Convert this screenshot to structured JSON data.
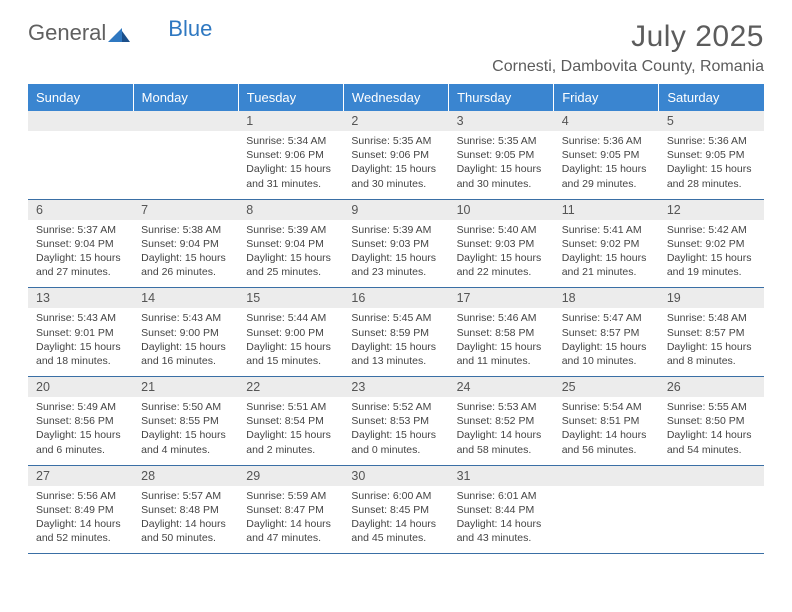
{
  "logo": {
    "general": "General",
    "blue": "Blue"
  },
  "title": "July 2025",
  "subtitle": "Cornesti, Dambovita County, Romania",
  "colors": {
    "header_bg": "#3a85d0",
    "header_fg": "#ffffff",
    "row_border": "#3a6fa5",
    "daynum_bg": "#ececec",
    "text": "#444444",
    "title_color": "#5c5c5c",
    "logo_gray": "#606060",
    "logo_blue": "#2f78c1"
  },
  "weekdays": [
    "Sunday",
    "Monday",
    "Tuesday",
    "Wednesday",
    "Thursday",
    "Friday",
    "Saturday"
  ],
  "weeks": [
    [
      null,
      null,
      {
        "n": "1",
        "sr": "5:34 AM",
        "ss": "9:06 PM",
        "dl": "15 hours and 31 minutes."
      },
      {
        "n": "2",
        "sr": "5:35 AM",
        "ss": "9:06 PM",
        "dl": "15 hours and 30 minutes."
      },
      {
        "n": "3",
        "sr": "5:35 AM",
        "ss": "9:05 PM",
        "dl": "15 hours and 30 minutes."
      },
      {
        "n": "4",
        "sr": "5:36 AM",
        "ss": "9:05 PM",
        "dl": "15 hours and 29 minutes."
      },
      {
        "n": "5",
        "sr": "5:36 AM",
        "ss": "9:05 PM",
        "dl": "15 hours and 28 minutes."
      }
    ],
    [
      {
        "n": "6",
        "sr": "5:37 AM",
        "ss": "9:04 PM",
        "dl": "15 hours and 27 minutes."
      },
      {
        "n": "7",
        "sr": "5:38 AM",
        "ss": "9:04 PM",
        "dl": "15 hours and 26 minutes."
      },
      {
        "n": "8",
        "sr": "5:39 AM",
        "ss": "9:04 PM",
        "dl": "15 hours and 25 minutes."
      },
      {
        "n": "9",
        "sr": "5:39 AM",
        "ss": "9:03 PM",
        "dl": "15 hours and 23 minutes."
      },
      {
        "n": "10",
        "sr": "5:40 AM",
        "ss": "9:03 PM",
        "dl": "15 hours and 22 minutes."
      },
      {
        "n": "11",
        "sr": "5:41 AM",
        "ss": "9:02 PM",
        "dl": "15 hours and 21 minutes."
      },
      {
        "n": "12",
        "sr": "5:42 AM",
        "ss": "9:02 PM",
        "dl": "15 hours and 19 minutes."
      }
    ],
    [
      {
        "n": "13",
        "sr": "5:43 AM",
        "ss": "9:01 PM",
        "dl": "15 hours and 18 minutes."
      },
      {
        "n": "14",
        "sr": "5:43 AM",
        "ss": "9:00 PM",
        "dl": "15 hours and 16 minutes."
      },
      {
        "n": "15",
        "sr": "5:44 AM",
        "ss": "9:00 PM",
        "dl": "15 hours and 15 minutes."
      },
      {
        "n": "16",
        "sr": "5:45 AM",
        "ss": "8:59 PM",
        "dl": "15 hours and 13 minutes."
      },
      {
        "n": "17",
        "sr": "5:46 AM",
        "ss": "8:58 PM",
        "dl": "15 hours and 11 minutes."
      },
      {
        "n": "18",
        "sr": "5:47 AM",
        "ss": "8:57 PM",
        "dl": "15 hours and 10 minutes."
      },
      {
        "n": "19",
        "sr": "5:48 AM",
        "ss": "8:57 PM",
        "dl": "15 hours and 8 minutes."
      }
    ],
    [
      {
        "n": "20",
        "sr": "5:49 AM",
        "ss": "8:56 PM",
        "dl": "15 hours and 6 minutes."
      },
      {
        "n": "21",
        "sr": "5:50 AM",
        "ss": "8:55 PM",
        "dl": "15 hours and 4 minutes."
      },
      {
        "n": "22",
        "sr": "5:51 AM",
        "ss": "8:54 PM",
        "dl": "15 hours and 2 minutes."
      },
      {
        "n": "23",
        "sr": "5:52 AM",
        "ss": "8:53 PM",
        "dl": "15 hours and 0 minutes."
      },
      {
        "n": "24",
        "sr": "5:53 AM",
        "ss": "8:52 PM",
        "dl": "14 hours and 58 minutes."
      },
      {
        "n": "25",
        "sr": "5:54 AM",
        "ss": "8:51 PM",
        "dl": "14 hours and 56 minutes."
      },
      {
        "n": "26",
        "sr": "5:55 AM",
        "ss": "8:50 PM",
        "dl": "14 hours and 54 minutes."
      }
    ],
    [
      {
        "n": "27",
        "sr": "5:56 AM",
        "ss": "8:49 PM",
        "dl": "14 hours and 52 minutes."
      },
      {
        "n": "28",
        "sr": "5:57 AM",
        "ss": "8:48 PM",
        "dl": "14 hours and 50 minutes."
      },
      {
        "n": "29",
        "sr": "5:59 AM",
        "ss": "8:47 PM",
        "dl": "14 hours and 47 minutes."
      },
      {
        "n": "30",
        "sr": "6:00 AM",
        "ss": "8:45 PM",
        "dl": "14 hours and 45 minutes."
      },
      {
        "n": "31",
        "sr": "6:01 AM",
        "ss": "8:44 PM",
        "dl": "14 hours and 43 minutes."
      },
      null,
      null
    ]
  ],
  "labels": {
    "sunrise": "Sunrise:",
    "sunset": "Sunset:",
    "daylight": "Daylight:"
  }
}
